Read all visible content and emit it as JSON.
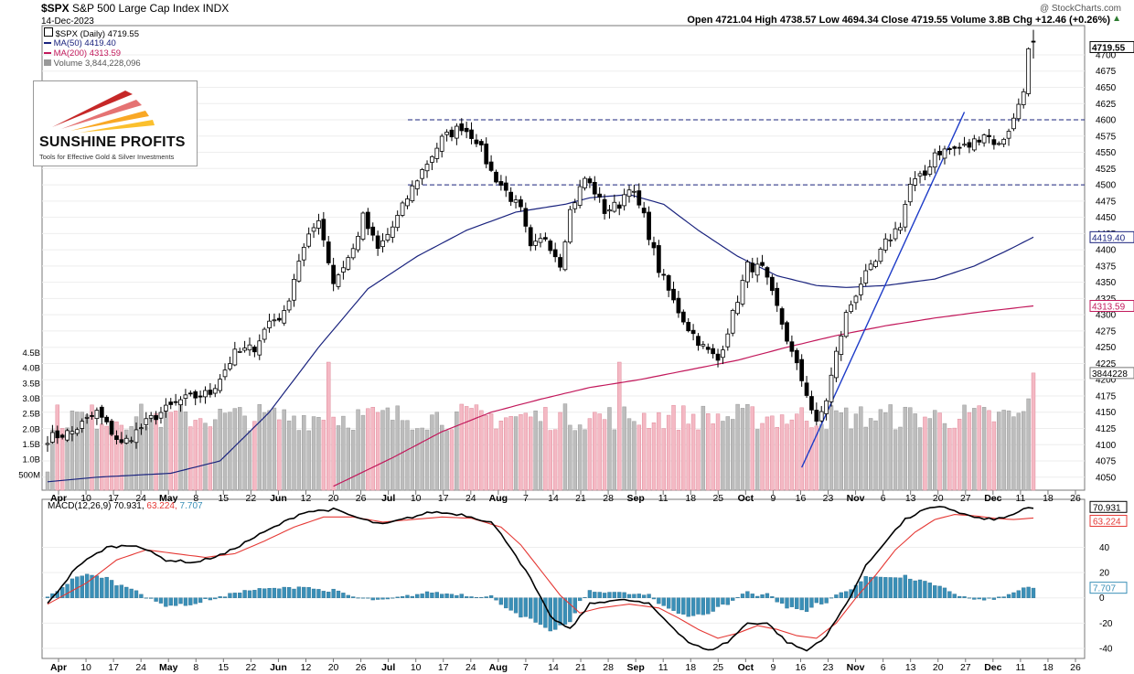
{
  "header": {
    "symbol": "$SPX",
    "name": "S&P 500 Large Cap Index",
    "exchange": "INDX",
    "date": "14-Dec-2023",
    "watermark": "@ StockCharts.com",
    "quote": "Open 4721.04  High 4738.57  Low 4694.34  Close 4719.55  Volume 3.8B  Chg +12.46 (+0.26%)",
    "chg_arrow": "▲"
  },
  "legend": {
    "price": "$SPX (Daily) 4719.55",
    "ma50": "MA(50) 4419.40",
    "ma200": "MA(200) 4313.59",
    "volume": "Volume 3,844,228,096"
  },
  "logo": {
    "brand": "SUNSHINE PROFITS",
    "tagline": "Tools for Effective Gold & Silver Investments"
  },
  "colors": {
    "ma50": "#1a237e",
    "ma200": "#c2185b",
    "trendline": "#1e3cc8",
    "level": "#1a237e",
    "vol_up": "#bdbdbd",
    "vol_down": "#f4b9c4",
    "macd": "#000000",
    "signal": "#e53935",
    "hist": "#3a8fb7"
  },
  "chart_data": [
    {
      "type": "candlestick",
      "title": "$SPX (Daily)",
      "y_ticks": [
        4050,
        4075,
        4100,
        4125,
        4150,
        4175,
        4200,
        4225,
        4250,
        4275,
        4300,
        4325,
        4350,
        4375,
        4400,
        4425,
        4450,
        4475,
        4500,
        4525,
        4550,
        4575,
        4600,
        4625,
        4650,
        4675,
        4700
      ],
      "ylim": [
        4030,
        4745
      ],
      "price_tags": [
        "4719.55",
        "4419.40",
        "4313.59"
      ],
      "x_tick_labels": [
        "Apr",
        "10",
        "17",
        "24",
        "May",
        "8",
        "15",
        "22",
        "Jun",
        "12",
        "20",
        "26",
        "Jul",
        "10",
        "17",
        "24",
        "Aug",
        "7",
        "14",
        "21",
        "28",
        "Sep",
        "11",
        "18",
        "25",
        "Oct",
        "9",
        "16",
        "23",
        "Nov",
        "6",
        "13",
        "20",
        "27",
        "Dec",
        "11",
        "18",
        "26"
      ],
      "horizontal_levels": [
        4600,
        4500
      ],
      "close_anchors": [
        [
          0,
          4110
        ],
        [
          5,
          4120
        ],
        [
          10,
          4150
        ],
        [
          15,
          4100
        ],
        [
          21,
          4140
        ],
        [
          27,
          4168
        ],
        [
          33,
          4180
        ],
        [
          38,
          4240
        ],
        [
          42,
          4250
        ],
        [
          45,
          4290
        ],
        [
          48,
          4300
        ],
        [
          51,
          4385
        ],
        [
          55,
          4450
        ],
        [
          58,
          4350
        ],
        [
          62,
          4400
        ],
        [
          64,
          4450
        ],
        [
          67,
          4400
        ],
        [
          70,
          4435
        ],
        [
          75,
          4510
        ],
        [
          80,
          4570
        ],
        [
          84,
          4590
        ],
        [
          87,
          4570
        ],
        [
          90,
          4520
        ],
        [
          93,
          4490
        ],
        [
          96,
          4460
        ],
        [
          98,
          4400
        ],
        [
          101,
          4420
        ],
        [
          104,
          4380
        ],
        [
          106,
          4460
        ],
        [
          109,
          4510
        ],
        [
          111,
          4490
        ],
        [
          113,
          4460
        ],
        [
          116,
          4470
        ],
        [
          118,
          4500
        ],
        [
          121,
          4450
        ],
        [
          124,
          4370
        ],
        [
          127,
          4320
        ],
        [
          130,
          4280
        ],
        [
          133,
          4250
        ],
        [
          136,
          4230
        ],
        [
          139,
          4300
        ],
        [
          142,
          4375
        ],
        [
          145,
          4370
        ],
        [
          148,
          4310
        ],
        [
          151,
          4240
        ],
        [
          154,
          4180
        ],
        [
          156,
          4130
        ],
        [
          158,
          4170
        ],
        [
          160,
          4240
        ],
        [
          162,
          4300
        ],
        [
          165,
          4350
        ],
        [
          168,
          4380
        ],
        [
          170,
          4410
        ],
        [
          173,
          4440
        ],
        [
          175,
          4500
        ],
        [
          178,
          4515
        ],
        [
          180,
          4550
        ],
        [
          184,
          4555
        ],
        [
          187,
          4560
        ],
        [
          190,
          4580
        ],
        [
          193,
          4560
        ],
        [
          196,
          4600
        ],
        [
          198,
          4650
        ],
        [
          199,
          4705
        ],
        [
          200,
          4720
        ]
      ],
      "last_candle": {
        "open": 4721.04,
        "high": 4738.57,
        "low": 4694.34,
        "close": 4719.55
      },
      "ma50_anchors": [
        [
          0,
          4043
        ],
        [
          10,
          4050
        ],
        [
          25,
          4056
        ],
        [
          35,
          4075
        ],
        [
          45,
          4150
        ],
        [
          55,
          4250
        ],
        [
          65,
          4340
        ],
        [
          75,
          4390
        ],
        [
          85,
          4430
        ],
        [
          95,
          4458
        ],
        [
          105,
          4470
        ],
        [
          110,
          4480
        ],
        [
          118,
          4485
        ],
        [
          125,
          4470
        ],
        [
          132,
          4430
        ],
        [
          140,
          4390
        ],
        [
          148,
          4360
        ],
        [
          156,
          4345
        ],
        [
          162,
          4342
        ],
        [
          170,
          4345
        ],
        [
          180,
          4355
        ],
        [
          188,
          4375
        ],
        [
          195,
          4400
        ],
        [
          200,
          4419.4
        ]
      ],
      "ma200_anchors": [
        [
          58,
          4036
        ],
        [
          70,
          4080
        ],
        [
          80,
          4120
        ],
        [
          90,
          4150
        ],
        [
          100,
          4170
        ],
        [
          110,
          4188
        ],
        [
          120,
          4200
        ],
        [
          130,
          4215
        ],
        [
          140,
          4230
        ],
        [
          150,
          4250
        ],
        [
          160,
          4268
        ],
        [
          170,
          4283
        ],
        [
          180,
          4295
        ],
        [
          190,
          4305
        ],
        [
          200,
          4313.59
        ]
      ]
    },
    {
      "type": "bar",
      "title": "Volume",
      "y_ticks_labels": [
        "500M",
        "1.0B",
        "1.5B",
        "2.0B",
        "2.5B",
        "3.0B",
        "3.5B",
        "4.0B",
        "4.5B"
      ],
      "y_ticks_values": [
        0.5,
        1.0,
        1.5,
        2.0,
        2.5,
        3.0,
        3.5,
        4.0,
        4.5
      ],
      "ylim_billions": [
        0,
        4.8
      ],
      "last_value_tag": "3844228",
      "last_value_billions": 3.844,
      "typical_billions": 2.4
    },
    {
      "type": "line",
      "title": "MACD(12,26,9)",
      "legend_values": [
        "70.931",
        "63.224",
        "7.707"
      ],
      "y_ticks": [
        -40,
        -20,
        0,
        20,
        40
      ],
      "ylim": [
        -48,
        78
      ],
      "macd_anchors": [
        [
          0,
          -5
        ],
        [
          6,
          25
        ],
        [
          12,
          40
        ],
        [
          18,
          42
        ],
        [
          24,
          30
        ],
        [
          30,
          28
        ],
        [
          36,
          35
        ],
        [
          42,
          48
        ],
        [
          48,
          60
        ],
        [
          52,
          68
        ],
        [
          58,
          70
        ],
        [
          64,
          62
        ],
        [
          68,
          58
        ],
        [
          72,
          62
        ],
        [
          78,
          68
        ],
        [
          84,
          66
        ],
        [
          90,
          60
        ],
        [
          94,
          40
        ],
        [
          98,
          15
        ],
        [
          102,
          -15
        ],
        [
          106,
          -25
        ],
        [
          110,
          -5
        ],
        [
          114,
          -2
        ],
        [
          118,
          -2
        ],
        [
          122,
          -5
        ],
        [
          126,
          -20
        ],
        [
          130,
          -35
        ],
        [
          134,
          -42
        ],
        [
          138,
          -35
        ],
        [
          142,
          -20
        ],
        [
          146,
          -20
        ],
        [
          150,
          -35
        ],
        [
          154,
          -42
        ],
        [
          158,
          -30
        ],
        [
          162,
          -5
        ],
        [
          166,
          25
        ],
        [
          170,
          45
        ],
        [
          174,
          62
        ],
        [
          178,
          70
        ],
        [
          182,
          72
        ],
        [
          186,
          66
        ],
        [
          190,
          62
        ],
        [
          194,
          63
        ],
        [
          198,
          70
        ],
        [
          200,
          70.931
        ]
      ],
      "signal_anchors": [
        [
          0,
          -5
        ],
        [
          8,
          12
        ],
        [
          14,
          30
        ],
        [
          20,
          38
        ],
        [
          26,
          35
        ],
        [
          32,
          32
        ],
        [
          38,
          35
        ],
        [
          44,
          45
        ],
        [
          50,
          56
        ],
        [
          56,
          64
        ],
        [
          62,
          64
        ],
        [
          68,
          60
        ],
        [
          74,
          62
        ],
        [
          80,
          64
        ],
        [
          86,
          63
        ],
        [
          92,
          56
        ],
        [
          96,
          42
        ],
        [
          100,
          22
        ],
        [
          104,
          2
        ],
        [
          108,
          -12
        ],
        [
          112,
          -8
        ],
        [
          118,
          -5
        ],
        [
          124,
          -8
        ],
        [
          128,
          -16
        ],
        [
          132,
          -25
        ],
        [
          136,
          -32
        ],
        [
          140,
          -28
        ],
        [
          144,
          -22
        ],
        [
          148,
          -25
        ],
        [
          152,
          -30
        ],
        [
          156,
          -32
        ],
        [
          160,
          -20
        ],
        [
          164,
          0
        ],
        [
          168,
          18
        ],
        [
          172,
          38
        ],
        [
          176,
          52
        ],
        [
          180,
          62
        ],
        [
          184,
          66
        ],
        [
          188,
          65
        ],
        [
          192,
          63
        ],
        [
          196,
          62
        ],
        [
          200,
          63.224
        ]
      ]
    }
  ]
}
